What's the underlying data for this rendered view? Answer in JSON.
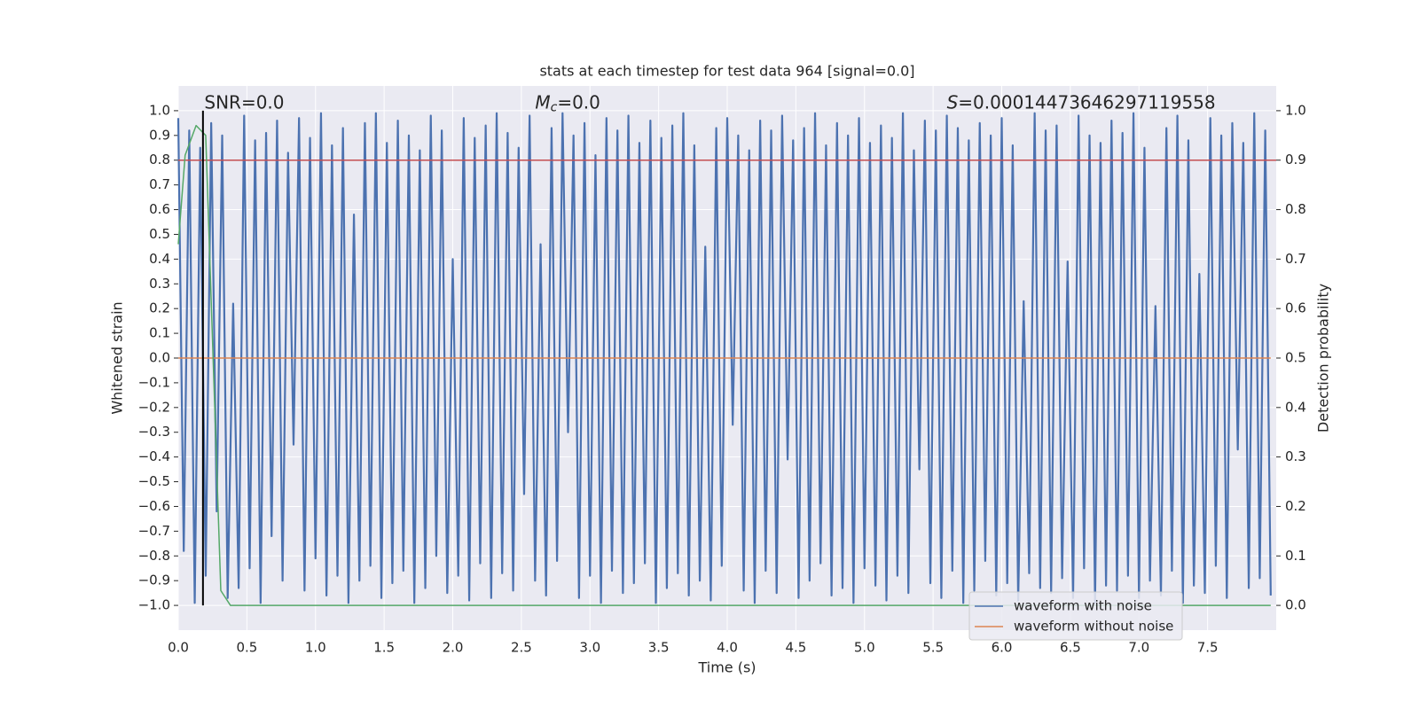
{
  "chart_data": {
    "type": "line",
    "title": "stats at each timestep for test data 964 [signal=0.0]",
    "x_label": "Time (s)",
    "y_label": "Whitened strain",
    "y2_label": "Detection probability",
    "xlim": [
      0,
      8.0
    ],
    "ylim": [
      -1.1,
      1.1
    ],
    "y2lim": [
      -0.05,
      1.05
    ],
    "xticks": [
      {
        "value": 0,
        "label": "0.0"
      },
      0.5,
      {
        "value": 1,
        "label": "1.0"
      },
      1.5,
      {
        "value": 2,
        "label": "2.0"
      },
      2.5,
      {
        "value": 3,
        "label": "3.0"
      },
      3.5,
      {
        "value": 4,
        "label": "4.0"
      },
      4.5,
      {
        "value": 5,
        "label": "5.0"
      },
      5.5,
      {
        "value": 6,
        "label": "6.0"
      },
      6.5,
      {
        "value": 7,
        "label": "7.0"
      },
      7.5
    ],
    "yticks": [
      {
        "value": -1,
        "label": "−1.0"
      },
      {
        "value": -0.9,
        "label": "−0.9"
      },
      {
        "value": -0.8,
        "label": "−0.8"
      },
      {
        "value": -0.7,
        "label": "−0.7"
      },
      {
        "value": -0.6,
        "label": "−0.6"
      },
      {
        "value": -0.5,
        "label": "−0.5"
      },
      {
        "value": -0.4,
        "label": "−0.4"
      },
      {
        "value": -0.3,
        "label": "−0.3"
      },
      {
        "value": -0.2,
        "label": "−0.2"
      },
      {
        "value": -0.1,
        "label": "−0.1"
      },
      {
        "value": 0,
        "label": "0.0"
      },
      0.1,
      0.2,
      0.3,
      0.4,
      0.5,
      0.6,
      0.7,
      0.8,
      0.9,
      {
        "value": 1,
        "label": "1.0"
      }
    ],
    "y2ticks": [
      {
        "value": 0,
        "label": "0.0"
      },
      0.1,
      0.2,
      0.3,
      0.4,
      0.5,
      0.6,
      0.7,
      0.8,
      0.9,
      {
        "value": 1,
        "label": "1.0"
      }
    ],
    "grid": true,
    "background": "#eaeaf2",
    "legend": "lower right",
    "series": [
      {
        "name": "waveform with noise",
        "color": "#4c72b0",
        "x": [
          0,
          0.04,
          0.08,
          0.12,
          0.16,
          0.2,
          0.24,
          0.28,
          0.32,
          0.36,
          0.4,
          0.44,
          0.48,
          0.52,
          0.56,
          0.6,
          0.64,
          0.68,
          0.72,
          0.76,
          0.8,
          0.84,
          0.88,
          0.92,
          0.96,
          1,
          1.04,
          1.08,
          1.12,
          1.16,
          1.2,
          1.24,
          1.28,
          1.32,
          1.36,
          1.4,
          1.44,
          1.48,
          1.52,
          1.56,
          1.6,
          1.64,
          1.68,
          1.72,
          1.76,
          1.8,
          1.84,
          1.88,
          1.92,
          1.96,
          2,
          2.04,
          2.08,
          2.12,
          2.16,
          2.2,
          2.24,
          2.28,
          2.32,
          2.36,
          2.4,
          2.44,
          2.48,
          2.52,
          2.56,
          2.6,
          2.64,
          2.68,
          2.72,
          2.76,
          2.8,
          2.84,
          2.88,
          2.92,
          2.96,
          3,
          3.04,
          3.08,
          3.12,
          3.16,
          3.2,
          3.24,
          3.28,
          3.32,
          3.36,
          3.4,
          3.44,
          3.48,
          3.52,
          3.56,
          3.6,
          3.64,
          3.68,
          3.72,
          3.76,
          3.8,
          3.84,
          3.88,
          3.92,
          3.96,
          4,
          4.04,
          4.08,
          4.12,
          4.16,
          4.2,
          4.24,
          4.28,
          4.32,
          4.36,
          4.4,
          4.44,
          4.48,
          4.52,
          4.56,
          4.6,
          4.64,
          4.68,
          4.72,
          4.76,
          4.8,
          4.84,
          4.88,
          4.92,
          4.96,
          5,
          5.04,
          5.08,
          5.12,
          5.16,
          5.2,
          5.24,
          5.28,
          5.32,
          5.36,
          5.4,
          5.44,
          5.48,
          5.52,
          5.56,
          5.6,
          5.64,
          5.68,
          5.72,
          5.76,
          5.8,
          5.84,
          5.88,
          5.92,
          5.96,
          6,
          6.04,
          6.08,
          6.12,
          6.16,
          6.2,
          6.24,
          6.28,
          6.32,
          6.36,
          6.4,
          6.44,
          6.48,
          6.52,
          6.56,
          6.6,
          6.64,
          6.68,
          6.72,
          6.76,
          6.8,
          6.84,
          6.88,
          6.92,
          6.96,
          7,
          7.04,
          7.08,
          7.12,
          7.16,
          7.2,
          7.24,
          7.28,
          7.32,
          7.36,
          7.4,
          7.44,
          7.48,
          7.52,
          7.56,
          7.6,
          7.64,
          7.68,
          7.72,
          7.76,
          7.8,
          7.84,
          7.88,
          7.92,
          7.96
        ],
        "values": [
          0.97,
          -0.78,
          0.92,
          -0.99,
          0.85,
          -0.88,
          0.95,
          -0.62,
          0.9,
          -0.97,
          0.22,
          -0.93,
          0.98,
          -0.85,
          0.88,
          -0.99,
          0.91,
          -0.72,
          0.96,
          -0.9,
          0.83,
          -0.35,
          0.97,
          -0.94,
          0.89,
          -0.81,
          0.99,
          -0.96,
          0.86,
          -0.88,
          0.93,
          -0.99,
          0.58,
          -0.9,
          0.95,
          -0.84,
          0.99,
          -0.97,
          0.87,
          -0.91,
          0.96,
          -0.86,
          0.9,
          -0.99,
          0.84,
          -0.93,
          0.98,
          -0.8,
          0.92,
          -0.95,
          0.4,
          -0.88,
          0.97,
          -0.98,
          0.89,
          -0.83,
          0.94,
          -0.97,
          0.99,
          -0.87,
          0.91,
          -0.94,
          0.85,
          -0.55,
          0.98,
          -0.9,
          0.46,
          -0.96,
          0.93,
          -0.82,
          0.99,
          -0.3,
          0.9,
          -0.97,
          0.95,
          -0.88,
          0.82,
          -0.99,
          0.97,
          -0.86,
          0.92,
          -0.95,
          0.98,
          -0.91,
          0.87,
          -0.83,
          0.96,
          -0.99,
          0.89,
          -0.93,
          0.94,
          -0.87,
          0.99,
          -0.96,
          0.86,
          -0.9,
          0.45,
          -0.98,
          0.93,
          -0.84,
          0.97,
          -0.27,
          0.9,
          -0.94,
          0.84,
          -0.99,
          0.96,
          -0.86,
          0.92,
          -0.95,
          0.98,
          -0.41,
          0.88,
          -0.97,
          0.93,
          -0.9,
          0.99,
          -0.83,
          0.86,
          -0.96,
          0.95,
          -0.93,
          0.9,
          -0.99,
          0.97,
          -0.85,
          0.87,
          -0.92,
          0.94,
          -0.98,
          0.89,
          -0.88,
          0.99,
          -0.95,
          0.84,
          -0.45,
          0.96,
          -0.91,
          0.92,
          -0.97,
          0.98,
          -0.86,
          0.93,
          -0.99,
          0.88,
          -0.94,
          0.95,
          -0.82,
          0.9,
          -0.96,
          0.97,
          -0.91,
          0.86,
          -0.98,
          0.23,
          -0.87,
          0.99,
          -0.93,
          0.92,
          -0.95,
          0.94,
          -0.89,
          0.39,
          -0.97,
          0.98,
          -0.85,
          0.9,
          -0.99,
          0.87,
          -0.92,
          0.96,
          -0.94,
          0.91,
          -0.88,
          0.99,
          -0.97,
          0.85,
          -0.9,
          0.21,
          -0.96,
          0.93,
          -0.86,
          0.98,
          -0.99,
          0.88,
          -0.92,
          0.34,
          -0.95,
          0.97,
          -0.84,
          0.9,
          -0.97,
          0.95,
          -0.37,
          0.87,
          -0.93,
          0.99,
          -0.89,
          0.92,
          -0.96
        ]
      },
      {
        "name": "waveform without noise",
        "color": "#dd8452",
        "x": [
          0,
          7.96
        ],
        "values": [
          0,
          0
        ]
      },
      {
        "color": "#55a868",
        "axis": "y2",
        "x": [
          0,
          0.05,
          0.13,
          0.2,
          0.31,
          0.38,
          7.96
        ],
        "values": [
          0.73,
          0.91,
          0.97,
          0.95,
          0.03,
          0,
          0
        ]
      }
    ],
    "hlines": [
      {
        "y": 0.9,
        "axis": "y2",
        "color": "#c44e52"
      }
    ],
    "vlines": [
      {
        "x": 0.18,
        "y": [
          -1,
          1
        ],
        "color": "#000000"
      }
    ],
    "annotations": [
      {
        "text": "SNR=0.0"
      },
      {
        "symbol": "M",
        "subscript": "c",
        "text": "=0.0"
      },
      {
        "symbol": "S",
        "text": "=0.00014473646297119558"
      }
    ]
  }
}
